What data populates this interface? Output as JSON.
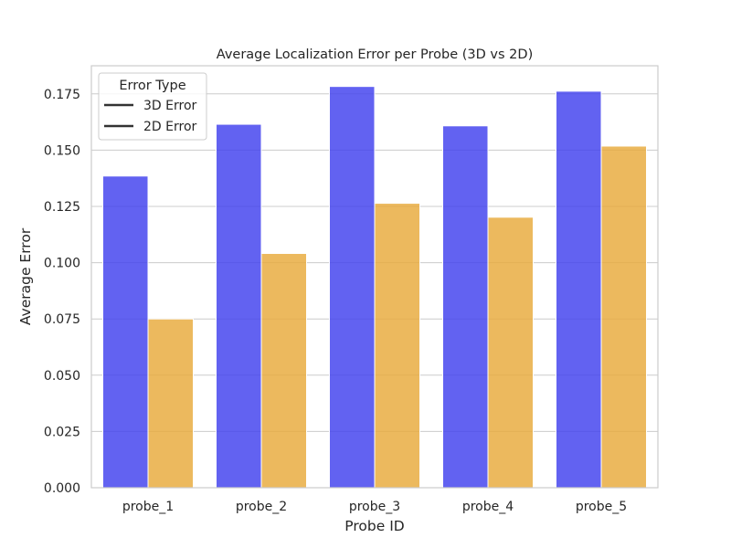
{
  "chart_data": {
    "type": "bar",
    "title": "Average Localization Error per Probe (3D vs 2D)",
    "xlabel": "Probe ID",
    "ylabel": "Average Error",
    "categories": [
      "probe_1",
      "probe_2",
      "probe_3",
      "probe_4",
      "probe_5"
    ],
    "series": [
      {
        "name": "3D Error",
        "values": [
          0.1385,
          0.1615,
          0.1783,
          0.1608,
          0.1762
        ],
        "color": "#4040ee"
      },
      {
        "name": "2D Error",
        "values": [
          0.075,
          0.1041,
          0.1264,
          0.1202,
          0.1518
        ],
        "color": "#e8a93a"
      }
    ],
    "ylim": [
      0,
      0.1875
    ],
    "yticks": [
      "0.000",
      "0.025",
      "0.050",
      "0.075",
      "0.100",
      "0.125",
      "0.150",
      "0.175"
    ],
    "grid": true,
    "legend": {
      "title": "Error Type",
      "placement": "top-left"
    }
  }
}
